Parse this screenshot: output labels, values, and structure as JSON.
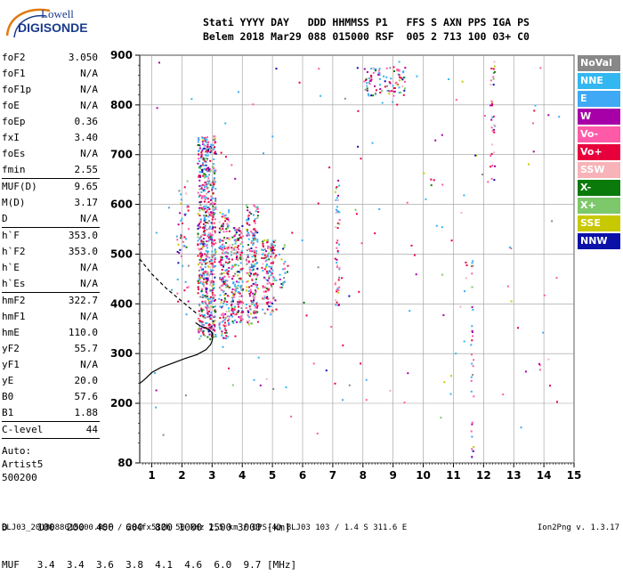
{
  "logo": {
    "line1": "Lowell",
    "line2": "DIGISONDE"
  },
  "header": {
    "line1": "Stati YYYY DAY   DDD HHMMSS P1   FFS S AXN PPS IGA PS",
    "line2": "Belem 2018 Mar29 088 015000 RSF  005 2 713 100 03+ C0"
  },
  "params_group1": [
    {
      "name": "foF2",
      "value": "3.050"
    },
    {
      "name": "foF1",
      "value": "N/A"
    },
    {
      "name": "foF1p",
      "value": "N/A"
    },
    {
      "name": "foE",
      "value": "N/A"
    },
    {
      "name": "foEp",
      "value": "0.36"
    },
    {
      "name": "fxI",
      "value": "3.40"
    },
    {
      "name": "foEs",
      "value": "N/A"
    },
    {
      "name": "fmin",
      "value": "2.55"
    }
  ],
  "params_group2": [
    {
      "name": "MUF(D)",
      "value": "9.65"
    },
    {
      "name": "M(D)",
      "value": "3.17"
    },
    {
      "name": "D",
      "value": "N/A"
    }
  ],
  "params_group3": [
    {
      "name": "h`F",
      "value": "353.0"
    },
    {
      "name": "h`F2",
      "value": "353.0"
    },
    {
      "name": "h`E",
      "value": "N/A"
    },
    {
      "name": "h`Es",
      "value": "N/A"
    }
  ],
  "params_group4": [
    {
      "name": "hmF2",
      "value": "322.7"
    },
    {
      "name": "hmF1",
      "value": "N/A"
    },
    {
      "name": "hmE",
      "value": "110.0"
    },
    {
      "name": "yF2",
      "value": "55.7"
    },
    {
      "name": "yF1",
      "value": "N/A"
    },
    {
      "name": "yE",
      "value": "20.0"
    },
    {
      "name": "B0",
      "value": "57.6"
    },
    {
      "name": "B1",
      "value": "1.88"
    }
  ],
  "params_group5": [
    {
      "name": "C-level",
      "value": "44"
    }
  ],
  "autoscaling": {
    "line1": "Auto:",
    "line2": "Artist5",
    "line3": "500200"
  },
  "legend": [
    {
      "label": "NoVal",
      "color": "#888888"
    },
    {
      "label": "NNE",
      "color": "#33b7f0"
    },
    {
      "label": "E",
      "color": "#3fa9f5"
    },
    {
      "label": "W",
      "color": "#a800a8"
    },
    {
      "label": "Vo-",
      "color": "#ff5aa8"
    },
    {
      "label": "Vo+",
      "color": "#e8003c"
    },
    {
      "label": "SSW",
      "color": "#f7b3b8"
    },
    {
      "label": "X-",
      "color": "#0a7a0a"
    },
    {
      "label": "X+",
      "color": "#7cc86a"
    },
    {
      "label": "SSE",
      "color": "#c8c800"
    },
    {
      "label": "NNW",
      "color": "#0a10a8"
    }
  ],
  "bottom_table": {
    "row1": "D     100  200  400  600  800 1000 1500 3000 [km]",
    "row2": "MUF   3.4  3.4  3.6  3.8  4.1  4.6  6.0  9.7 [MHz]"
  },
  "footer": {
    "left": "BLJ03_2018088015000.RSF / 284fx512h 50 kHz 2.5 km / DPS-4D BLJ03 103 / 1.4 S 311.6 E",
    "right": "Ion2Png v. 1.3.17"
  },
  "chart_data": {
    "type": "scatter",
    "title": "",
    "xlabel": "",
    "ylabel": "",
    "xlim": [
      0.6,
      15
    ],
    "ylim": [
      80,
      900
    ],
    "xticks": [
      1,
      2,
      3,
      4,
      5,
      6,
      7,
      8,
      9,
      10,
      11,
      12,
      13,
      14,
      15
    ],
    "yticks": [
      80,
      200,
      300,
      400,
      500,
      600,
      700,
      800,
      900
    ],
    "grid": true,
    "legend_position": "right",
    "series": [
      {
        "name": "profile",
        "type": "line",
        "x": [
          0.6,
          0.8,
          1.0,
          1.3,
          1.7,
          2.1,
          2.5,
          2.8,
          2.95,
          3.0,
          3.02,
          3.0,
          2.9,
          2.75,
          2.6,
          2.45
        ],
        "y": [
          240,
          250,
          262,
          272,
          281,
          290,
          298,
          308,
          318,
          325,
          333,
          342,
          348,
          352,
          356,
          362
        ]
      },
      {
        "name": "trace",
        "type": "dashed",
        "x": [
          0.6,
          1.0,
          1.5,
          2.0,
          2.3,
          2.5
        ],
        "y": [
          490,
          460,
          430,
          405,
          390,
          380
        ]
      }
    ],
    "clusters": [
      {
        "x": [
          2.5,
          3.1
        ],
        "y": [
          330,
          740
        ],
        "density": 0.9
      },
      {
        "x": [
          3.2,
          3.55
        ],
        "y": [
          330,
          590
        ],
        "density": 0.7
      },
      {
        "x": [
          3.6,
          4.0
        ],
        "y": [
          360,
          560
        ],
        "density": 0.7
      },
      {
        "x": [
          4.1,
          4.5
        ],
        "y": [
          360,
          600
        ],
        "density": 0.65
      },
      {
        "x": [
          4.6,
          5.1
        ],
        "y": [
          380,
          530
        ],
        "density": 0.55
      },
      {
        "x": [
          5.2,
          5.4
        ],
        "y": [
          430,
          520
        ],
        "density": 0.4
      },
      {
        "x": [
          7.05,
          7.2
        ],
        "y": [
          390,
          650
        ],
        "density": 0.4
      },
      {
        "x": [
          8.0,
          9.4
        ],
        "y": [
          820,
          880
        ],
        "density": 0.35
      },
      {
        "x": [
          11.55,
          11.65
        ],
        "y": [
          80,
          500
        ],
        "density": 0.25
      },
      {
        "x": [
          12.2,
          12.35
        ],
        "y": [
          650,
          900
        ],
        "density": 0.3
      },
      {
        "x": [
          1.8,
          2.2
        ],
        "y": [
          400,
          650
        ],
        "density": 0.15
      }
    ]
  }
}
